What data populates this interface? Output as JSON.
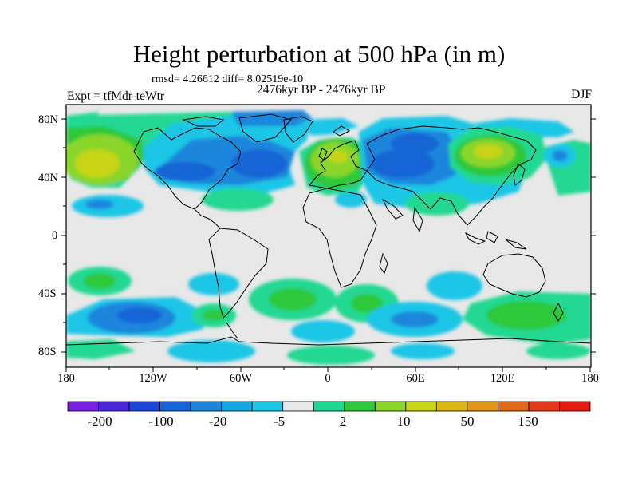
{
  "title": "Height perturbation at 500 hPa (in m)",
  "stats": "rmsd= 4.26612 diff= 8.02519e-10",
  "experiment": "Expt = tfMdr-teWtr",
  "period": "2476kyr BP - 2476kyr BP",
  "season": "DJF",
  "lat_labels": [
    "80N",
    "40N",
    "0",
    "40S",
    "80S"
  ],
  "lon_labels": [
    "180",
    "120W",
    "60W",
    "0",
    "60E",
    "120E",
    "180"
  ],
  "colorbar": {
    "labels": [
      "-200",
      "-100",
      "-20",
      "-5",
      "2",
      "10",
      "50",
      "150"
    ],
    "colors": [
      "#7a1ee0",
      "#4a28d6",
      "#1c46d8",
      "#1565d6",
      "#1f86dc",
      "#14a8e2",
      "#1cc6e6",
      "#e8e8e8",
      "#21d892",
      "#2ec83a",
      "#8ad62a",
      "#c8d417",
      "#dcb614",
      "#e2951a",
      "#e06a1a",
      "#e23a16",
      "#e41c10"
    ]
  },
  "map": {
    "background_color": "#e8e8e8",
    "lat_range": [
      -90,
      90
    ],
    "lon_range": [
      -180,
      180
    ]
  }
}
